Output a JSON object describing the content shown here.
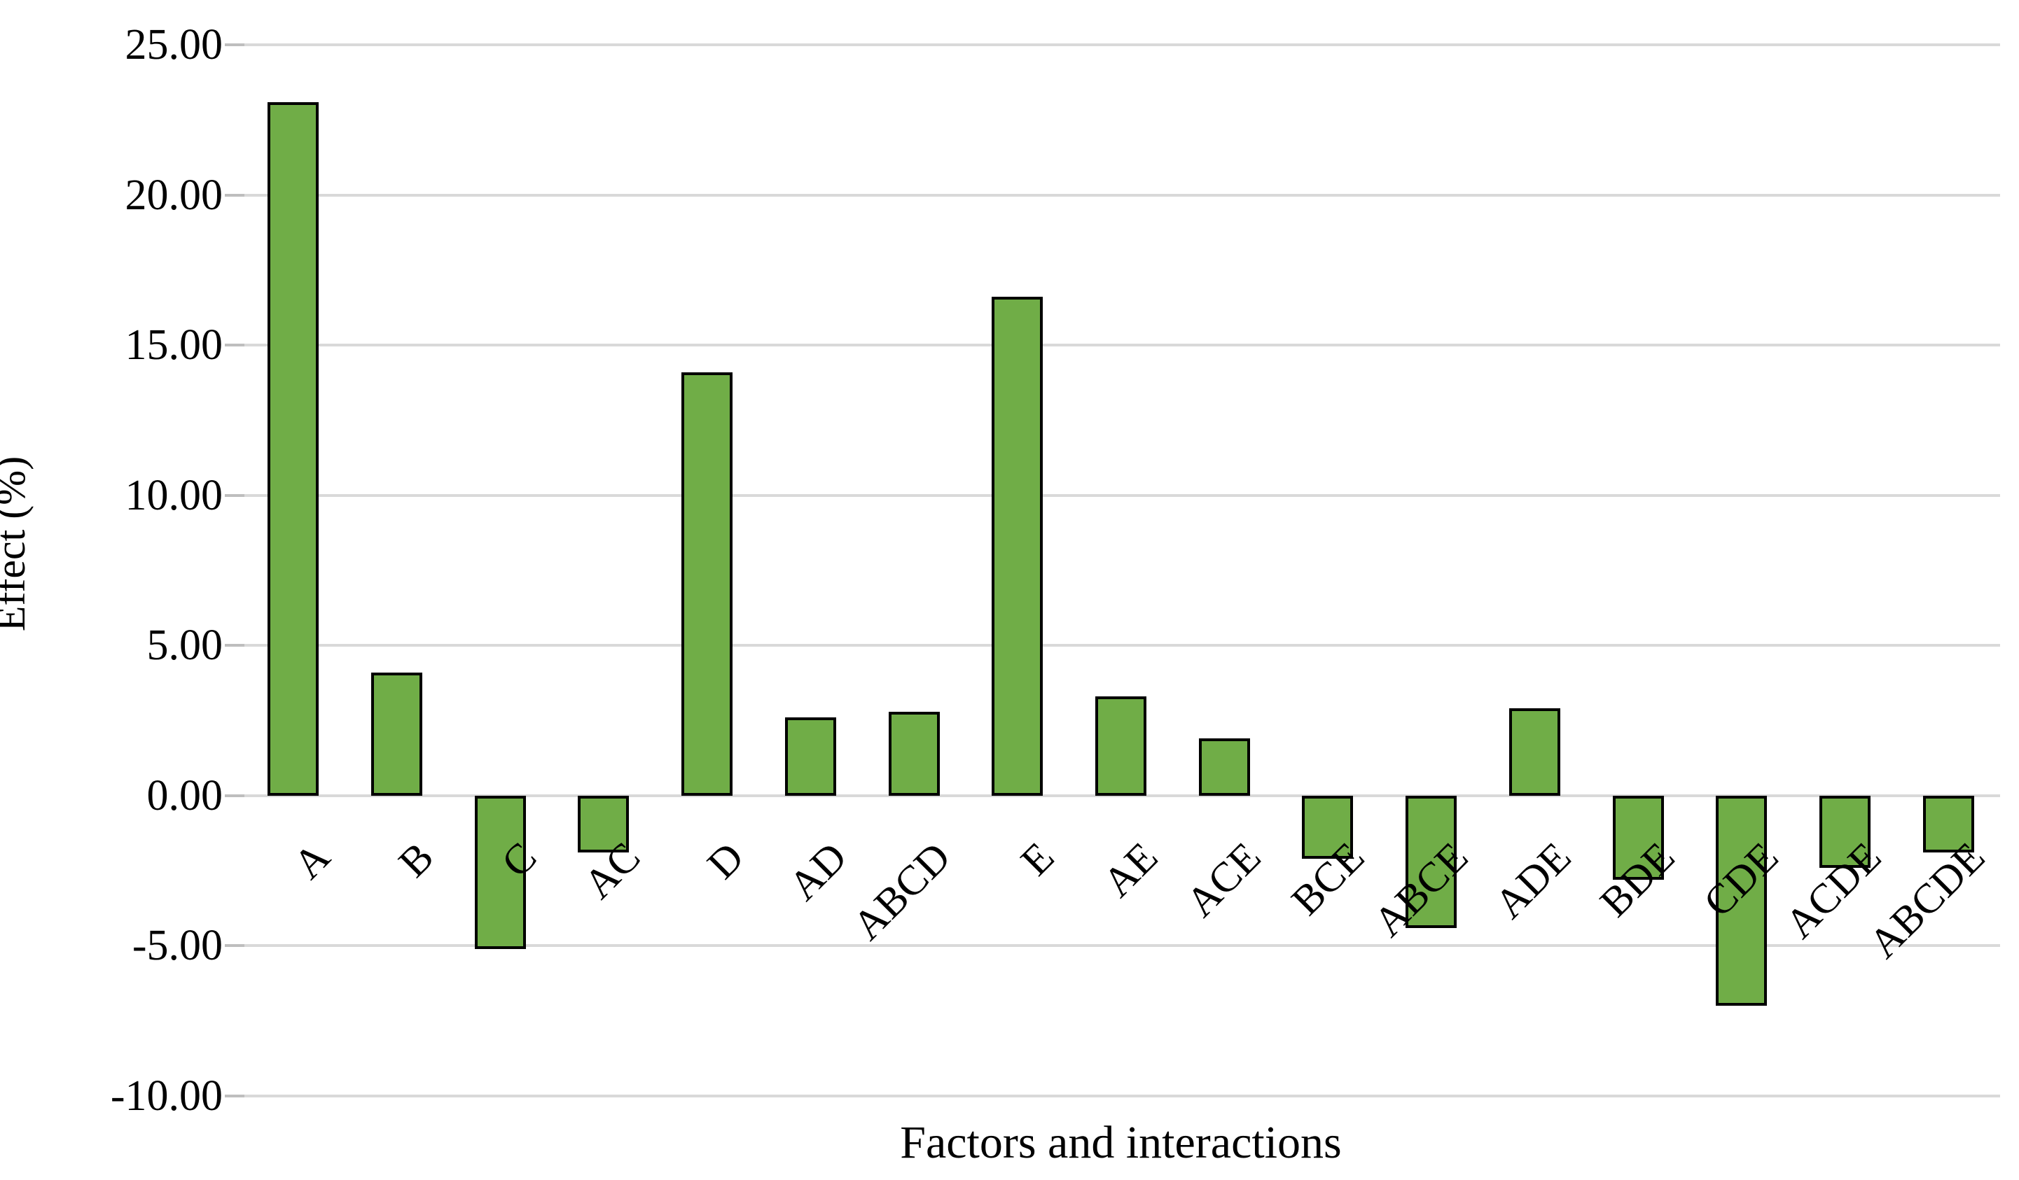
{
  "chart_data": {
    "type": "bar",
    "title": "",
    "xlabel": "Factors and interactions",
    "ylabel": "Effect (%)",
    "categories": [
      "A",
      "B",
      "C",
      "AC",
      "D",
      "AD",
      "ABCD",
      "E",
      "AE",
      "ACE",
      "BCE",
      "ABCE",
      "ADE",
      "BDE",
      "CDE",
      "ACDE",
      "ABCDE"
    ],
    "values": [
      23.1,
      4.1,
      -5.1,
      -1.9,
      14.1,
      2.6,
      2.8,
      16.6,
      3.3,
      1.9,
      -2.1,
      -4.4,
      2.9,
      -2.8,
      -7.0,
      -2.4,
      -1.9
    ],
    "ylim": [
      -10,
      25
    ],
    "ytick_step": 5,
    "ytick_labels": [
      "25.00",
      "20.00",
      "15.00",
      "10.00",
      "5.00",
      "0.00",
      "-5.00",
      "-10.00"
    ],
    "grid": true,
    "legend": false,
    "bar_color": "#70AD47",
    "bar_border_color": "#000000",
    "gridline_color": "#D9D9D9",
    "tick_color": "#BEBEBE",
    "background": "#FFFFFF",
    "text_color": "#000000"
  }
}
